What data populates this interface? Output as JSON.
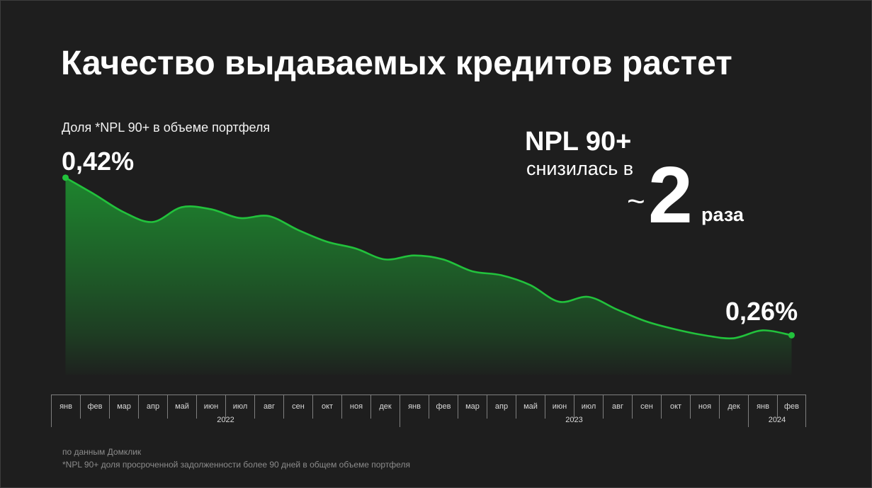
{
  "slide": {
    "title": "Качество выдаваемых кредитов растет",
    "callout": {
      "metric": "NPL 90+",
      "text": "снизилась в",
      "approx": "~",
      "factor": "2",
      "unit": "раза"
    },
    "footnotes": [
      "по данным Домклик",
      "*NPL 90+ доля просроченной задолженности более 90 дней в общем объеме портфеля"
    ]
  },
  "colors": {
    "background": "#1e1e1e",
    "text": "#ffffff",
    "muted_text": "#8c8c8c",
    "axis_line": "#7f7f7f",
    "series_line": "#22c23c",
    "area_fill": "#1e8a2f"
  },
  "chart_data": {
    "type": "area",
    "title": "Доля *NPL 90+ в объеме портфеля",
    "categories": [
      "янв",
      "фев",
      "мар",
      "апр",
      "май",
      "июн",
      "июл",
      "авг",
      "сен",
      "окт",
      "ноя",
      "дек",
      "янв",
      "фев",
      "мар",
      "апр",
      "май",
      "июн",
      "июл",
      "авг",
      "сен",
      "окт",
      "ноя",
      "дек",
      "янв",
      "фев"
    ],
    "category_groups": [
      {
        "label": "2022",
        "count": 12
      },
      {
        "label": "2023",
        "count": 12
      },
      {
        "label": "2024",
        "count": 2
      }
    ],
    "series": [
      {
        "values": [
          0.42,
          0.403,
          0.385,
          0.375,
          0.39,
          0.388,
          0.379,
          0.381,
          0.367,
          0.355,
          0.348,
          0.337,
          0.341,
          0.337,
          0.325,
          0.321,
          0.311,
          0.294,
          0.299,
          0.286,
          0.274,
          0.266,
          0.26,
          0.257,
          0.265,
          0.26
        ]
      }
    ],
    "data_labels": [
      {
        "point": 0,
        "text": "0,42%"
      },
      {
        "point": 25,
        "text": "0,26%"
      }
    ],
    "ylim": [
      0.22,
      0.44
    ],
    "grid": false,
    "smooth": true
  }
}
